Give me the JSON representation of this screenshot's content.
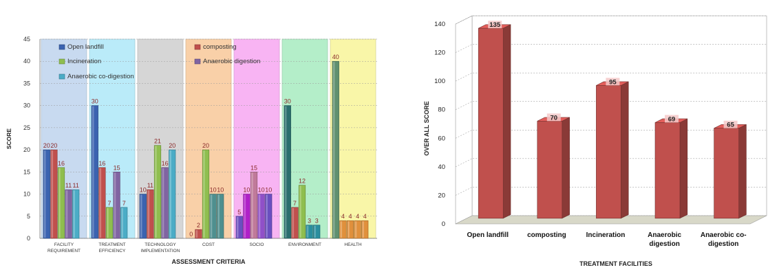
{
  "chart_data": [
    {
      "type": "bar",
      "xlabel": "ASSESSMENT CRITERIA",
      "ylabel": "SCORE",
      "ylim": [
        0,
        45
      ],
      "yticks": [
        0,
        5,
        10,
        15,
        20,
        25,
        30,
        35,
        40,
        45
      ],
      "grid": true,
      "legend_position": "top-left",
      "categories": [
        [
          "FACILITY",
          "REQUIREMENT"
        ],
        [
          "TREATMENT",
          "EFFICIENCY"
        ],
        [
          "TECHNOLOGY",
          "IMPLEMENTATION"
        ],
        [
          "COST"
        ],
        [
          "SOCIO"
        ],
        [
          "ENVIRONMENT"
        ],
        [
          "HEALTH"
        ]
      ],
      "category_backgrounds": [
        "#bfd4ee",
        "#aee8f8",
        "#cfcfcf",
        "#f9c89a",
        "#f7a8f2",
        "#a8ecc0",
        "#f9f59a"
      ],
      "series": [
        {
          "name": "Open landfill",
          "color": "#3b63b0",
          "values": [
            20,
            30,
            10,
            0,
            5,
            30,
            40
          ]
        },
        {
          "name": "composting",
          "color": "#c0504d",
          "values": [
            20,
            16,
            11,
            2,
            10,
            7,
            4
          ]
        },
        {
          "name": "Incineration",
          "color": "#8fbe4f",
          "values": [
            16,
            7,
            21,
            20,
            15,
            12,
            4
          ]
        },
        {
          "name": "Anaerobic digestion",
          "color": "#8064a2",
          "values": [
            11,
            15,
            16,
            10,
            10,
            3,
            4
          ]
        },
        {
          "name": "Anaerobic co-digestion",
          "color": "#4bacc6",
          "values": [
            11,
            7,
            20,
            10,
            10,
            3,
            4
          ]
        }
      ],
      "series_colors_by_group": [
        [
          "#3b63b0",
          "#c0504d",
          "#8fbe4f",
          "#8064a2",
          "#4bacc6"
        ],
        [
          "#3b63b0",
          "#c0504d",
          "#8fbe4f",
          "#8064a2",
          "#4bacc6"
        ],
        [
          "#3b63b0",
          "#c0504d",
          "#8fbe4f",
          "#8064a2",
          "#4bacc6"
        ],
        [
          "#c0504d",
          "#c0504d",
          "#8fbe4f",
          "#4e8f8f",
          "#4e8f8f"
        ],
        [
          "#6a4fc0",
          "#b020c8",
          "#c07a9a",
          "#9050c8",
          "#6a4fc0"
        ],
        [
          "#2a6e6e",
          "#c0504d",
          "#8fbe4f",
          "#2a8e9e",
          "#2a8e9e"
        ],
        [
          "#5f8f6f",
          "#e0903c",
          "#e0903c",
          "#e0903c",
          "#e0903c"
        ]
      ],
      "data_labels": [
        [
          "20",
          "20",
          "16",
          "11",
          "11"
        ],
        [
          "30",
          "16",
          "7",
          "15",
          "7"
        ],
        [
          "10",
          "11",
          "21",
          "16",
          "20"
        ],
        [
          "0",
          "2",
          "20",
          "10",
          "10"
        ],
        [
          "5",
          "10",
          "15",
          "10",
          "10"
        ],
        [
          "30",
          "7",
          "12",
          "3",
          "3"
        ],
        [
          "40",
          "4",
          "4",
          "4",
          "4"
        ]
      ]
    },
    {
      "type": "bar",
      "xlabel": "TREATMENT FACILITIES",
      "ylabel": "OVER ALL SCORE",
      "ylim": [
        0,
        140
      ],
      "yticks": [
        0,
        20,
        40,
        60,
        80,
        100,
        120,
        140
      ],
      "grid": true,
      "bar_color": "#c0504d",
      "categories": [
        [
          "Open landfill"
        ],
        [
          "composting"
        ],
        [
          "Incineration"
        ],
        [
          "Anaerobic",
          "digestion"
        ],
        [
          "Anaerobic co-",
          "digestion"
        ]
      ],
      "values": [
        135,
        70,
        95,
        69,
        65
      ],
      "data_labels": [
        "135",
        "70",
        "95",
        "69",
        "65"
      ]
    }
  ]
}
